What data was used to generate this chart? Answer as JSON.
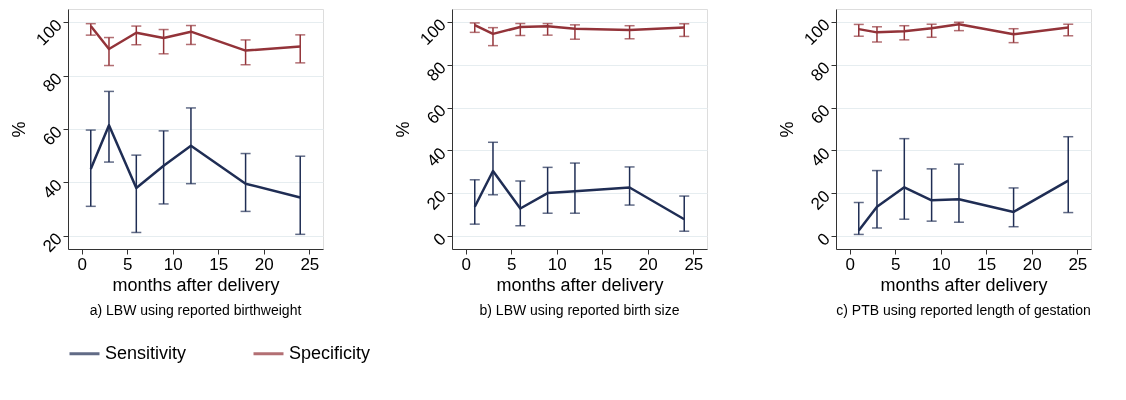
{
  "chart_data": [
    {
      "type": "line",
      "title": "a) LBW using reported birthweight",
      "xlabel": "months after delivery",
      "ylabel": "%",
      "x": [
        1,
        3,
        6,
        9,
        12,
        18,
        24
      ],
      "xlim": [
        -1.5,
        26.5
      ],
      "ylim": [
        15,
        105
      ],
      "xticks": [
        0,
        5,
        10,
        15,
        20,
        25
      ],
      "yticks": [
        20,
        40,
        60,
        80,
        100
      ],
      "grid": "y",
      "legend": "bottom",
      "series": [
        {
          "name": "Sensitivity",
          "color": "#1f2d54",
          "values": [
            45.0,
            61.4,
            37.9,
            46.2,
            53.7,
            39.5,
            34.3
          ],
          "errors": [
            [
              31.0,
              59.6
            ],
            [
              47.6,
              74.1
            ],
            [
              21.2,
              50.2
            ],
            [
              31.9,
              59.3
            ],
            [
              39.5,
              67.9
            ],
            [
              29.1,
              50.8
            ],
            [
              20.5,
              49.8
            ]
          ]
        },
        {
          "name": "Specificity",
          "color": "#933339",
          "values": [
            98.6,
            90.0,
            96.1,
            94.1,
            96.5,
            89.4,
            90.9
          ],
          "errors": [
            [
              95.2,
              99.5
            ],
            [
              83.8,
              94.3
            ],
            [
              91.6,
              98.6
            ],
            [
              88.2,
              97.3
            ],
            [
              91.7,
              98.8
            ],
            [
              84.1,
              93.4
            ],
            [
              84.8,
              95.3
            ]
          ]
        }
      ]
    },
    {
      "type": "line",
      "title": "b) LBW using reported birth size",
      "xlabel": "months after delivery",
      "ylabel": "%",
      "x": [
        1,
        3,
        6,
        9,
        12,
        18,
        24
      ],
      "xlim": [
        -1.5,
        26.5
      ],
      "ylim": [
        -6,
        106
      ],
      "xticks": [
        0,
        5,
        10,
        15,
        20,
        25
      ],
      "yticks": [
        0,
        20,
        40,
        60,
        80,
        100
      ],
      "grid": "y",
      "legend": "bottom",
      "series": [
        {
          "name": "Sensitivity",
          "color": "#1f2d54",
          "values": [
            13.7,
            30.4,
            12.9,
            20.1,
            21.0,
            22.7,
            7.9
          ],
          "errors": [
            [
              5.6,
              26.3
            ],
            [
              19.3,
              43.8
            ],
            [
              4.9,
              25.7
            ],
            [
              10.7,
              32.1
            ],
            [
              10.7,
              34.1
            ],
            [
              14.5,
              32.3
            ],
            [
              2.3,
              18.7
            ]
          ]
        },
        {
          "name": "Specificity",
          "color": "#933339",
          "values": [
            98.5,
            94.4,
            97.6,
            98.0,
            96.8,
            96.2,
            97.4
          ],
          "errors": [
            [
              95.1,
              99.5
            ],
            [
              88.9,
              97.3
            ],
            [
              93.6,
              99.2
            ],
            [
              93.8,
              99.2
            ],
            [
              91.9,
              98.6
            ],
            [
              92.1,
              98.2
            ],
            [
              93.2,
              99.1
            ]
          ]
        }
      ]
    },
    {
      "type": "line",
      "title": "c) PTB using reported length of gestation",
      "xlabel": "months after delivery",
      "ylabel": "%",
      "x": [
        1,
        3,
        6,
        9,
        12,
        18,
        24
      ],
      "xlim": [
        -1.5,
        26.5
      ],
      "ylim": [
        -6,
        106
      ],
      "xticks": [
        0,
        5,
        10,
        15,
        20,
        25
      ],
      "yticks": [
        0,
        20,
        40,
        60,
        80,
        100
      ],
      "grid": "y",
      "legend": "bottom",
      "series": [
        {
          "name": "Sensitivity",
          "color": "#1f2d54",
          "values": [
            2.6,
            13.7,
            22.8,
            16.7,
            17.2,
            11.3,
            25.9
          ],
          "errors": [
            [
              0.8,
              15.7
            ],
            [
              3.8,
              30.6
            ],
            [
              7.9,
              45.5
            ],
            [
              7.0,
              31.4
            ],
            [
              6.5,
              33.6
            ],
            [
              4.4,
              22.5
            ],
            [
              11.0,
              46.4
            ]
          ]
        },
        {
          "name": "Specificity",
          "color": "#933339",
          "values": [
            96.6,
            95.1,
            95.6,
            97.0,
            98.9,
            94.2,
            97.4
          ],
          "errors": [
            [
              93.3,
              98.8
            ],
            [
              90.6,
              97.7
            ],
            [
              91.6,
              98.2
            ],
            [
              92.8,
              98.9
            ],
            [
              95.9,
              99.8
            ],
            [
              90.3,
              96.8
            ],
            [
              93.5,
              98.9
            ]
          ]
        }
      ]
    }
  ]
}
